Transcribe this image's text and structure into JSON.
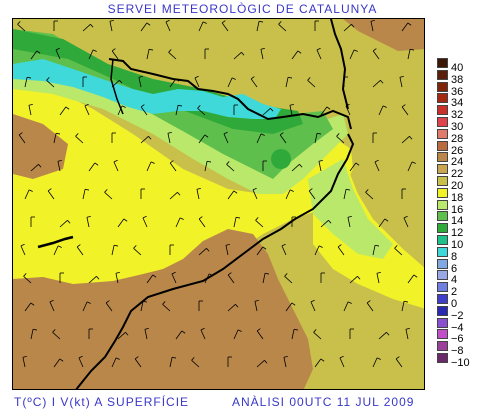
{
  "header": {
    "title": "SERVEI METEOROLÒGIC DE CATALUNYA"
  },
  "footer": {
    "left": "T(ºC) I V(kt) A SUPERFÍCIE",
    "right": "ANÀLISI 00UTC 11 JUL 2009"
  },
  "legend": {
    "items": [
      {
        "label": "40",
        "color": "#3b1706"
      },
      {
        "label": "38",
        "color": "#5a1f08"
      },
      {
        "label": "36",
        "color": "#7d2409"
      },
      {
        "label": "34",
        "color": "#a32a10"
      },
      {
        "label": "32",
        "color": "#c9302a"
      },
      {
        "label": "30",
        "color": "#e0434b"
      },
      {
        "label": "28",
        "color": "#e07a6a"
      },
      {
        "label": "26",
        "color": "#b96a3e"
      },
      {
        "label": "24",
        "color": "#b9874a"
      },
      {
        "label": "22",
        "color": "#c9a552"
      },
      {
        "label": "20",
        "color": "#c8c04a"
      },
      {
        "label": "18",
        "color": "#f2f229"
      },
      {
        "label": "16",
        "color": "#b9e86a"
      },
      {
        "label": "14",
        "color": "#5fbf4c"
      },
      {
        "label": "12",
        "color": "#2fa93a"
      },
      {
        "label": "10",
        "color": "#20c08a"
      },
      {
        "label": "8",
        "color": "#3fd9d9"
      },
      {
        "label": "6",
        "color": "#7fa9e0"
      },
      {
        "label": "4",
        "color": "#9aa9e6"
      },
      {
        "label": "2",
        "color": "#6f7fe0"
      },
      {
        "label": "0",
        "color": "#3f3fc9"
      },
      {
        "label": "−2",
        "color": "#2a2ab0"
      },
      {
        "label": "−4",
        "color": "#8a4fd0"
      },
      {
        "label": "−6",
        "color": "#c04fc9"
      },
      {
        "label": "−8",
        "color": "#9a3f9a"
      },
      {
        "label": "−10",
        "color": "#6a2a6a"
      }
    ]
  },
  "colors": {
    "text_blue": "#3a37c8",
    "border": "#000000"
  }
}
